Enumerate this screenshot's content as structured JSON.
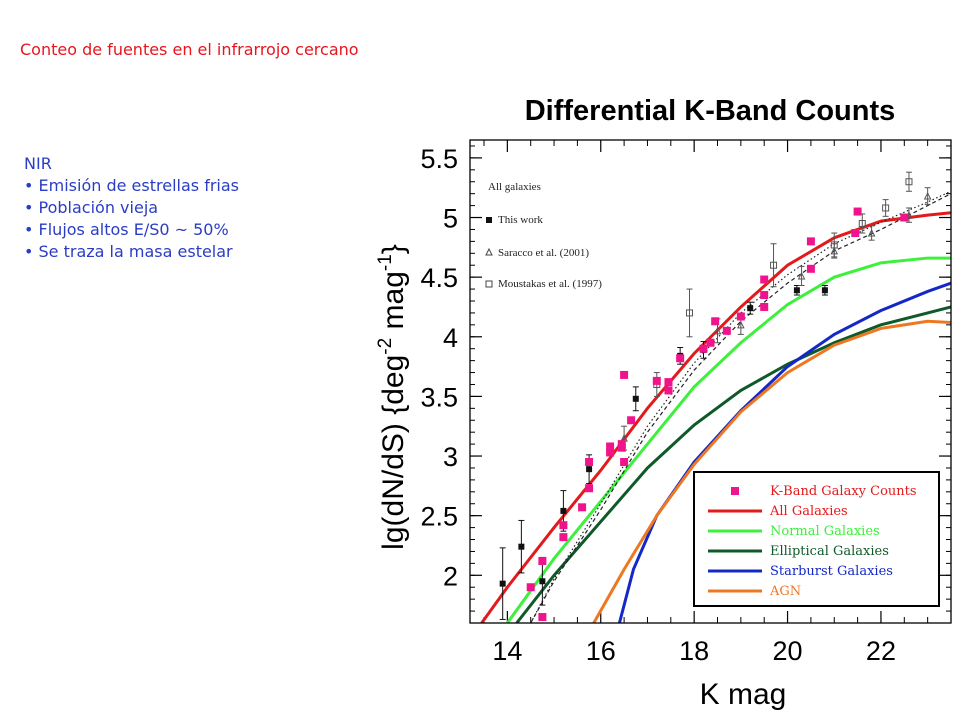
{
  "slide": {
    "title": "Conteo de fuentes en el infrarrojo cercano",
    "notes_heading": "NIR",
    "bullets": [
      "• Emisión de estrellas frias",
      "• Población vieja",
      "• Flujos altos E/S0 ~ 50%",
      "• Se traza la masa estelar"
    ]
  },
  "colors": {
    "slide_title": "#e8141e",
    "bullets": "#2a3dc4",
    "k_band_counts": "#f0148c",
    "all_galaxies": "#e31a1c",
    "normal_galaxies": "#3cf03c",
    "elliptical_galaxies": "#0f5a28",
    "starburst_galaxies": "#1428c8",
    "agn": "#ee7722"
  },
  "chart_data": {
    "type": "scatter",
    "title": "Differential K-Band Counts",
    "xlabel": "K mag",
    "ylabel": "lg(dN/dS)  {deg-2 mag-1}",
    "xlim": [
      13.2,
      23.5
    ],
    "ylim": [
      1.6,
      5.65
    ],
    "xticks": [
      "14",
      "16",
      "18",
      "20",
      "22"
    ],
    "yticks": [
      "2",
      "2.5",
      "3",
      "3.5",
      "4",
      "4.5",
      "5",
      "5.5"
    ],
    "grid": false,
    "inner_legend": {
      "entries": [
        "All galaxies",
        "This work",
        "Saracco et al. (2001)",
        "Moustakas et al. (1997)"
      ]
    },
    "legend": {
      "position": "bottom-right",
      "entries": [
        "K-Band Galaxy Counts",
        "All Galaxies",
        "Normal Galaxies",
        "Elliptical Galaxies",
        "Starburst Galaxies",
        "AGN"
      ]
    },
    "series": [
      {
        "name": "K-Band Galaxy Counts",
        "kind": "points",
        "color": "#f0148c",
        "points": [
          [
            14.5,
            1.9
          ],
          [
            14.75,
            1.65
          ],
          [
            14.75,
            2.12
          ],
          [
            15.2,
            2.32
          ],
          [
            15.2,
            2.42
          ],
          [
            15.6,
            2.57
          ],
          [
            15.75,
            2.73
          ],
          [
            15.75,
            2.95
          ],
          [
            16.2,
            3.03
          ],
          [
            16.2,
            3.08
          ],
          [
            16.45,
            3.07
          ],
          [
            16.45,
            3.1
          ],
          [
            16.5,
            2.95
          ],
          [
            16.5,
            3.68
          ],
          [
            16.65,
            3.3
          ],
          [
            17.2,
            3.63
          ],
          [
            17.45,
            3.55
          ],
          [
            17.45,
            3.62
          ],
          [
            17.7,
            3.82
          ],
          [
            18.2,
            3.9
          ],
          [
            18.35,
            3.95
          ],
          [
            18.45,
            4.13
          ],
          [
            18.7,
            4.05
          ],
          [
            19.0,
            4.17
          ],
          [
            19.5,
            4.25
          ],
          [
            19.5,
            4.35
          ],
          [
            19.5,
            4.48
          ],
          [
            20.5,
            4.57
          ],
          [
            20.5,
            4.8
          ],
          [
            21.45,
            4.87
          ],
          [
            21.5,
            5.05
          ],
          [
            22.5,
            5.0
          ]
        ]
      },
      {
        "name": "This work",
        "kind": "errpoints",
        "color": "#111111",
        "points": [
          [
            13.9,
            1.93,
            0.3
          ],
          [
            14.3,
            2.24,
            0.22
          ],
          [
            14.75,
            1.95,
            0.2
          ],
          [
            15.2,
            2.54,
            0.17
          ],
          [
            15.75,
            2.89,
            0.12
          ],
          [
            16.75,
            3.48,
            0.1
          ],
          [
            17.7,
            3.84,
            0.07
          ],
          [
            18.2,
            3.89,
            0.07
          ],
          [
            19.2,
            4.24,
            0.05
          ],
          [
            20.2,
            4.39,
            0.04
          ],
          [
            20.8,
            4.39,
            0.04
          ]
        ]
      },
      {
        "name": "Saracco et al. (2001)",
        "kind": "errpoints",
        "color": "#555555",
        "points": [
          [
            16.5,
            3.15,
            0.1
          ],
          [
            18.5,
            4.05,
            0.1
          ],
          [
            19.0,
            4.1,
            0.08
          ],
          [
            20.3,
            4.51,
            0.08
          ],
          [
            21.0,
            4.72,
            0.06
          ],
          [
            21.8,
            4.87,
            0.06
          ],
          [
            22.6,
            5.02,
            0.06
          ],
          [
            23.0,
            5.18,
            0.07
          ]
        ]
      },
      {
        "name": "Moustakas et al. (1997)",
        "kind": "errpoints",
        "color": "#555555",
        "points": [
          [
            17.2,
            3.6,
            0.1
          ],
          [
            17.9,
            4.2,
            0.2
          ],
          [
            19.7,
            4.6,
            0.18
          ],
          [
            21.0,
            4.77,
            0.1
          ],
          [
            21.6,
            4.95,
            0.08
          ],
          [
            22.1,
            5.08,
            0.07
          ],
          [
            22.6,
            5.3,
            0.08
          ]
        ]
      },
      {
        "name": "All Galaxies",
        "kind": "line",
        "color": "#e31a1c",
        "points": [
          [
            13.45,
            1.6
          ],
          [
            14,
            1.9
          ],
          [
            15,
            2.4
          ],
          [
            16,
            2.88
          ],
          [
            17,
            3.4
          ],
          [
            18,
            3.86
          ],
          [
            19,
            4.25
          ],
          [
            20,
            4.6
          ],
          [
            21,
            4.83
          ],
          [
            22,
            4.97
          ],
          [
            23,
            5.02
          ],
          [
            23.5,
            5.04
          ]
        ]
      },
      {
        "name": "Normal Galaxies",
        "kind": "line",
        "color": "#3cf03c",
        "points": [
          [
            14.0,
            1.6
          ],
          [
            15,
            2.14
          ],
          [
            16,
            2.62
          ],
          [
            17,
            3.1
          ],
          [
            18,
            3.58
          ],
          [
            19,
            3.95
          ],
          [
            20,
            4.27
          ],
          [
            21,
            4.5
          ],
          [
            22,
            4.62
          ],
          [
            23,
            4.66
          ],
          [
            23.5,
            4.66
          ]
        ]
      },
      {
        "name": "Elliptical Galaxies",
        "kind": "line",
        "color": "#0f5a28",
        "points": [
          [
            14.2,
            1.6
          ],
          [
            15,
            2.0
          ],
          [
            16,
            2.45
          ],
          [
            17,
            2.9
          ],
          [
            18,
            3.26
          ],
          [
            19,
            3.55
          ],
          [
            20,
            3.77
          ],
          [
            21,
            3.95
          ],
          [
            22,
            4.1
          ],
          [
            23,
            4.2
          ],
          [
            23.5,
            4.25
          ]
        ]
      },
      {
        "name": "Starburst Galaxies",
        "kind": "line",
        "color": "#1428c8",
        "points": [
          [
            16.4,
            1.6
          ],
          [
            16.7,
            2.05
          ],
          [
            17.2,
            2.5
          ],
          [
            18,
            2.95
          ],
          [
            19,
            3.38
          ],
          [
            20,
            3.75
          ],
          [
            21,
            4.02
          ],
          [
            22,
            4.22
          ],
          [
            23,
            4.38
          ],
          [
            23.5,
            4.45
          ]
        ]
      },
      {
        "name": "AGN",
        "kind": "line",
        "color": "#ee7722",
        "points": [
          [
            15.85,
            1.6
          ],
          [
            16.5,
            2.05
          ],
          [
            17.2,
            2.5
          ],
          [
            18,
            2.93
          ],
          [
            19,
            3.37
          ],
          [
            20,
            3.7
          ],
          [
            21,
            3.93
          ],
          [
            22,
            4.07
          ],
          [
            23,
            4.13
          ],
          [
            23.5,
            4.12
          ]
        ]
      },
      {
        "name": "model 1",
        "kind": "line",
        "color": "#222222",
        "dash": "4 3",
        "points": [
          [
            14.5,
            1.6
          ],
          [
            15,
            1.95
          ],
          [
            16,
            2.55
          ],
          [
            17,
            3.2
          ],
          [
            18,
            3.72
          ],
          [
            19,
            4.13
          ],
          [
            20,
            4.45
          ],
          [
            21,
            4.72
          ],
          [
            22,
            4.9
          ],
          [
            23,
            5.1
          ],
          [
            23.5,
            5.2
          ]
        ]
      },
      {
        "name": "model 2",
        "kind": "line",
        "color": "#222222",
        "dash": "1.5 2.5",
        "points": [
          [
            14.5,
            1.6
          ],
          [
            15,
            1.97
          ],
          [
            16,
            2.6
          ],
          [
            17,
            3.25
          ],
          [
            18,
            3.78
          ],
          [
            19,
            4.2
          ],
          [
            20,
            4.52
          ],
          [
            21,
            4.78
          ],
          [
            22,
            4.96
          ],
          [
            23,
            5.13
          ],
          [
            23.5,
            5.22
          ]
        ]
      }
    ]
  }
}
